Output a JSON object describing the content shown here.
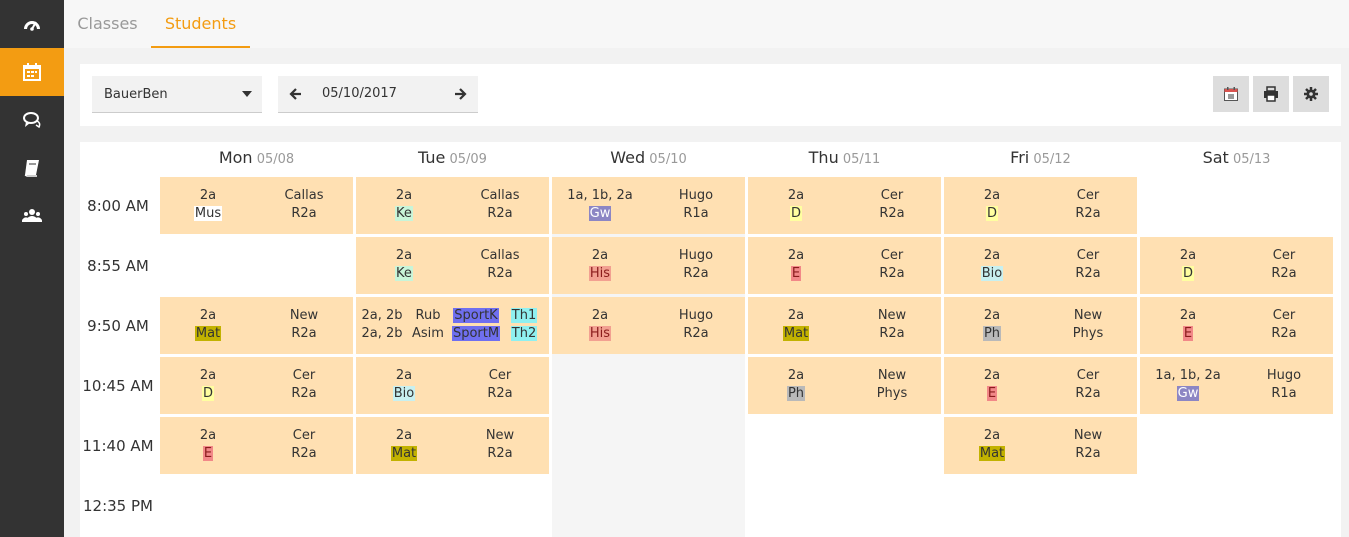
{
  "sidebar": {
    "items": [
      {
        "icon": "dashboard-icon",
        "active": false
      },
      {
        "icon": "calendar-icon",
        "active": true
      },
      {
        "icon": "chat-icon",
        "active": false
      },
      {
        "icon": "book-icon",
        "active": false
      },
      {
        "icon": "users-icon",
        "active": false
      }
    ]
  },
  "tabs": [
    {
      "label": "Classes",
      "active": false
    },
    {
      "label": "Students",
      "active": true
    }
  ],
  "toolbar": {
    "student": "BauerBen",
    "date": "05/10/2017",
    "buttons": [
      {
        "name": "calendar-today-button",
        "icon": "calendar-today-icon"
      },
      {
        "name": "print-button",
        "icon": "printer-icon"
      },
      {
        "name": "settings-button",
        "icon": "gear-icon"
      }
    ]
  },
  "timetable": {
    "days": [
      {
        "name": "Mon",
        "date": "05/08"
      },
      {
        "name": "Tue",
        "date": "05/09"
      },
      {
        "name": "Wed",
        "date": "05/10"
      },
      {
        "name": "Thu",
        "date": "05/11"
      },
      {
        "name": "Fri",
        "date": "05/12"
      },
      {
        "name": "Sat",
        "date": "05/13"
      }
    ],
    "times": [
      "8:00 AM",
      "8:55 AM",
      "9:50 AM",
      "10:45 AM",
      "11:40 AM",
      "12:35 PM"
    ],
    "current_day": 2,
    "colors": {
      "period": "#ffe0b2",
      "Mus": "#ffffff",
      "Ke": "#c8f5d9",
      "Gw": "#8c86c4",
      "D": "#ffffa0",
      "His": "#f2a091",
      "E": "#f28888",
      "Bio": "#c8f0f0",
      "Mat": "#c2b200",
      "Ph": "#b9b9b9",
      "SportK": "#6f6fef",
      "SportM": "#6f6fef",
      "Th1": "#8ff0f0",
      "Th2": "#8ff0f0"
    },
    "lessons": [
      {
        "day": 0,
        "slot": 0,
        "classes": [
          "2a"
        ],
        "subjects": [
          "Mus"
        ],
        "teacher": "Callas",
        "room": "R2a"
      },
      {
        "day": 0,
        "slot": 2,
        "classes": [
          "2a"
        ],
        "subjects": [
          "Mat"
        ],
        "teacher": "New",
        "room": "R2a"
      },
      {
        "day": 0,
        "slot": 3,
        "classes": [
          "2a"
        ],
        "subjects": [
          "D"
        ],
        "teacher": "Cer",
        "room": "R2a"
      },
      {
        "day": 0,
        "slot": 4,
        "classes": [
          "2a"
        ],
        "subjects": [
          "E"
        ],
        "teacher": "Cer",
        "room": "R2a"
      },
      {
        "day": 1,
        "slot": 0,
        "classes": [
          "2a"
        ],
        "subjects": [
          "Ke"
        ],
        "teacher": "Callas",
        "room": "R2a"
      },
      {
        "day": 1,
        "slot": 1,
        "classes": [
          "2a"
        ],
        "subjects": [
          "Ke"
        ],
        "teacher": "Callas",
        "room": "R2a"
      },
      {
        "day": 1,
        "slot": 2,
        "classes": [
          "2a, 2b",
          "2a, 2b"
        ],
        "subjects": [
          "SportK",
          "SportM"
        ],
        "teachers": [
          "Rub",
          "Asim"
        ],
        "rooms": [
          "Th1",
          "Th2"
        ]
      },
      {
        "day": 1,
        "slot": 3,
        "classes": [
          "2a"
        ],
        "subjects": [
          "Bio"
        ],
        "teacher": "Cer",
        "room": "R2a"
      },
      {
        "day": 1,
        "slot": 4,
        "classes": [
          "2a"
        ],
        "subjects": [
          "Mat"
        ],
        "teacher": "New",
        "room": "R2a"
      },
      {
        "day": 2,
        "slot": 0,
        "classes": [
          "1a, 1b, 2a"
        ],
        "subjects": [
          "Gw"
        ],
        "teacher": "Hugo",
        "room": "R1a"
      },
      {
        "day": 2,
        "slot": 1,
        "classes": [
          "2a"
        ],
        "subjects": [
          "His"
        ],
        "teacher": "Hugo",
        "room": "R2a"
      },
      {
        "day": 2,
        "slot": 2,
        "classes": [
          "2a"
        ],
        "subjects": [
          "His"
        ],
        "teacher": "Hugo",
        "room": "R2a"
      },
      {
        "day": 3,
        "slot": 0,
        "classes": [
          "2a"
        ],
        "subjects": [
          "D"
        ],
        "teacher": "Cer",
        "room": "R2a"
      },
      {
        "day": 3,
        "slot": 1,
        "classes": [
          "2a"
        ],
        "subjects": [
          "E"
        ],
        "teacher": "Cer",
        "room": "R2a"
      },
      {
        "day": 3,
        "slot": 2,
        "classes": [
          "2a"
        ],
        "subjects": [
          "Mat"
        ],
        "teacher": "New",
        "room": "R2a"
      },
      {
        "day": 3,
        "slot": 3,
        "classes": [
          "2a"
        ],
        "subjects": [
          "Ph"
        ],
        "teacher": "New",
        "room": "Phys"
      },
      {
        "day": 4,
        "slot": 0,
        "classes": [
          "2a"
        ],
        "subjects": [
          "D"
        ],
        "teacher": "Cer",
        "room": "R2a"
      },
      {
        "day": 4,
        "slot": 1,
        "classes": [
          "2a"
        ],
        "subjects": [
          "Bio"
        ],
        "teacher": "Cer",
        "room": "R2a"
      },
      {
        "day": 4,
        "slot": 2,
        "classes": [
          "2a"
        ],
        "subjects": [
          "Ph"
        ],
        "teacher": "New",
        "room": "Phys"
      },
      {
        "day": 4,
        "slot": 3,
        "classes": [
          "2a"
        ],
        "subjects": [
          "E"
        ],
        "teacher": "Cer",
        "room": "R2a"
      },
      {
        "day": 4,
        "slot": 4,
        "classes": [
          "2a"
        ],
        "subjects": [
          "Mat"
        ],
        "teacher": "New",
        "room": "R2a"
      },
      {
        "day": 5,
        "slot": 1,
        "classes": [
          "2a"
        ],
        "subjects": [
          "D"
        ],
        "teacher": "Cer",
        "room": "R2a"
      },
      {
        "day": 5,
        "slot": 2,
        "classes": [
          "2a"
        ],
        "subjects": [
          "E"
        ],
        "teacher": "Cer",
        "room": "R2a"
      },
      {
        "day": 5,
        "slot": 3,
        "classes": [
          "1a, 1b, 2a"
        ],
        "subjects": [
          "Gw"
        ],
        "teacher": "Hugo",
        "room": "R1a"
      }
    ]
  }
}
